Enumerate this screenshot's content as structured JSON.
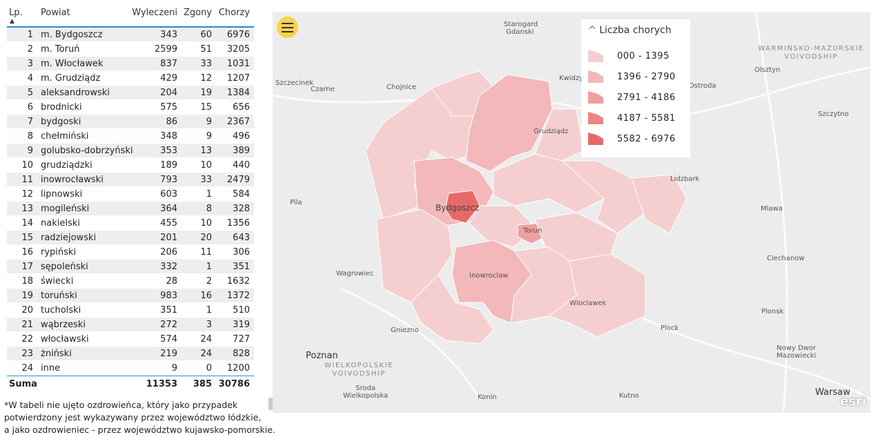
{
  "table": {
    "headers": {
      "lp": "Lp.",
      "powiat": "Powiat",
      "wyleczeni": "Wyleczeni",
      "zgony": "Zgony",
      "chorzy": "Chorzy"
    },
    "rows": [
      {
        "lp": "1",
        "powiat": "m. Bydgoszcz",
        "wyleczeni": "343",
        "zgony": "60",
        "chorzy": "6976"
      },
      {
        "lp": "2",
        "powiat": "m. Toruń",
        "wyleczeni": "2599",
        "zgony": "51",
        "chorzy": "3205"
      },
      {
        "lp": "3",
        "powiat": "m. Włocławek",
        "wyleczeni": "837",
        "zgony": "33",
        "chorzy": "1031"
      },
      {
        "lp": "4",
        "powiat": "m. Grudziądz",
        "wyleczeni": "429",
        "zgony": "12",
        "chorzy": "1207"
      },
      {
        "lp": "5",
        "powiat": "aleksandrowski",
        "wyleczeni": "204",
        "zgony": "19",
        "chorzy": "1384"
      },
      {
        "lp": "6",
        "powiat": "brodnicki",
        "wyleczeni": "575",
        "zgony": "15",
        "chorzy": "656"
      },
      {
        "lp": "7",
        "powiat": "bydgoski",
        "wyleczeni": "86",
        "zgony": "9",
        "chorzy": "2367"
      },
      {
        "lp": "8",
        "powiat": "chełmiński",
        "wyleczeni": "348",
        "zgony": "9",
        "chorzy": "496"
      },
      {
        "lp": "9",
        "powiat": "golubsko-dobrzyński",
        "wyleczeni": "353",
        "zgony": "13",
        "chorzy": "389"
      },
      {
        "lp": "10",
        "powiat": "grudziądzki",
        "wyleczeni": "189",
        "zgony": "10",
        "chorzy": "440"
      },
      {
        "lp": "11",
        "powiat": "inowrocławski",
        "wyleczeni": "793",
        "zgony": "33",
        "chorzy": "2479"
      },
      {
        "lp": "12",
        "powiat": "lipnowski",
        "wyleczeni": "603",
        "zgony": "1",
        "chorzy": "584"
      },
      {
        "lp": "13",
        "powiat": "mogileński",
        "wyleczeni": "364",
        "zgony": "8",
        "chorzy": "328"
      },
      {
        "lp": "14",
        "powiat": "nakielski",
        "wyleczeni": "455",
        "zgony": "10",
        "chorzy": "1356"
      },
      {
        "lp": "15",
        "powiat": "radziejowski",
        "wyleczeni": "201",
        "zgony": "20",
        "chorzy": "643"
      },
      {
        "lp": "16",
        "powiat": "rypiński",
        "wyleczeni": "206",
        "zgony": "11",
        "chorzy": "306"
      },
      {
        "lp": "17",
        "powiat": "sępoleński",
        "wyleczeni": "332",
        "zgony": "1",
        "chorzy": "351"
      },
      {
        "lp": "18",
        "powiat": "świecki",
        "wyleczeni": "28",
        "zgony": "2",
        "chorzy": "1632"
      },
      {
        "lp": "19",
        "powiat": "toruński",
        "wyleczeni": "983",
        "zgony": "16",
        "chorzy": "1372"
      },
      {
        "lp": "20",
        "powiat": "tucholski",
        "wyleczeni": "351",
        "zgony": "1",
        "chorzy": "510"
      },
      {
        "lp": "21",
        "powiat": "wąbrzeski",
        "wyleczeni": "272",
        "zgony": "3",
        "chorzy": "319"
      },
      {
        "lp": "22",
        "powiat": "włocławski",
        "wyleczeni": "574",
        "zgony": "24",
        "chorzy": "727"
      },
      {
        "lp": "23",
        "powiat": "żniński",
        "wyleczeni": "219",
        "zgony": "24",
        "chorzy": "828"
      },
      {
        "lp": "24",
        "powiat": "inne",
        "wyleczeni": "9",
        "zgony": "0",
        "chorzy": "1200"
      }
    ],
    "sum": {
      "label": "Suma",
      "wyleczeni": "11353",
      "zgony": "385",
      "chorzy": "30786"
    },
    "sort_icon": "triangle-up-icon"
  },
  "note": [
    "*W tabeli nie ujęto ozdrowieńca, który jako przypadek",
    "potwierdzony jest wykazywany przez województwo łódzkie,",
    "a jako ozdrowieniec - przez województwo kujawsko-pomorskie."
  ],
  "map": {
    "legend": {
      "title": "Liczba chorych",
      "classes": [
        {
          "label": "000 - 1395",
          "color": "#f5cfd0"
        },
        {
          "label": "1396 - 2790",
          "color": "#f2b8ba"
        },
        {
          "label": "2791 - 4186",
          "color": "#ef9f9f"
        },
        {
          "label": "4187 - 5581",
          "color": "#ec8584"
        },
        {
          "label": "5582 - 6976",
          "color": "#e66a68"
        }
      ]
    },
    "cities": [
      "Starogard Gdanski",
      "Kwidzyn",
      "Olsztyn",
      "Ostroda",
      "Szczecinek",
      "Czarne",
      "Chojnice",
      "Grudziądz",
      "Szczytno",
      "Lidzbark",
      "Pila",
      "Bydgoszcz",
      "Torun",
      "Mlawa",
      "Ciechanow",
      "Wagrowiec",
      "Inowroclaw",
      "Wloclawek",
      "Plonsk",
      "Gniezno",
      "Plock",
      "Poznan",
      "Nowy Dwor Mazowiecki",
      "Sroda Wielkopolska",
      "Konin",
      "Kutno",
      "Warsaw"
    ],
    "regions": [
      "WARMIŃSKO-MAZURSKIE VOIVODSHIP",
      "WIELKOPOLSKIE VOIVODSHIP"
    ],
    "attribution": "esri"
  }
}
